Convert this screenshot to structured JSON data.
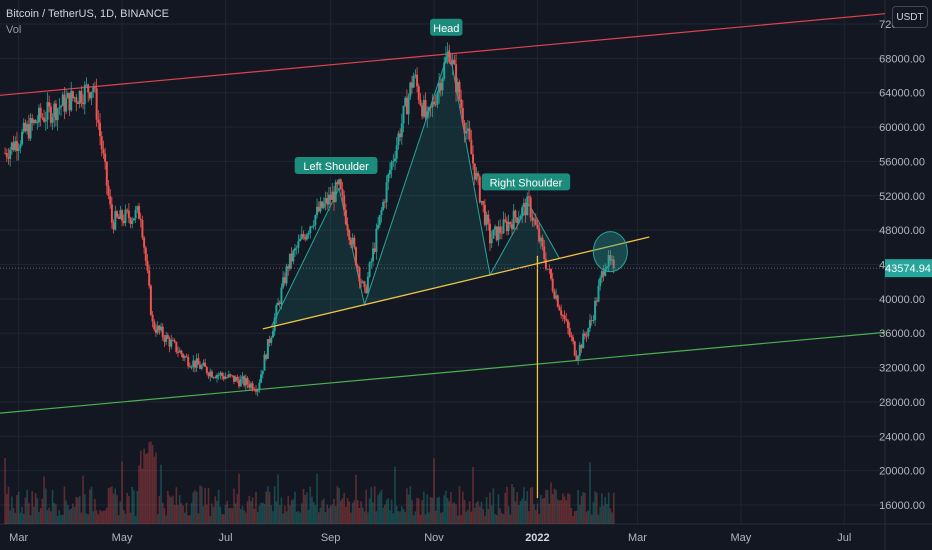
{
  "legend": {
    "symbol_line": "Bitcoin / TetherUS, 1D, BINANCE",
    "volume_label": "Vol"
  },
  "currency": "USDT",
  "chart_data": {
    "type": "candlestick",
    "title": "Bitcoin / TetherUS, 1D, BINANCE",
    "y_ticks": [
      "72000.00",
      "68000.00",
      "64000.00",
      "60000.00",
      "56000.00",
      "52000.00",
      "48000.00",
      "44000.00",
      "40000.00",
      "36000.00",
      "32000.00",
      "28000.00",
      "24000.00",
      "20000.00",
      "16000.00"
    ],
    "ylim": [
      13000,
      74000
    ],
    "x_ticks": [
      "Mar",
      "May",
      "Jul",
      "Sep",
      "Nov",
      "2022",
      "Mar",
      "May",
      "Jul"
    ],
    "last_price": "43574.94",
    "last_price_value": 43574.94,
    "price_path_key_points": [
      {
        "date": "2021-02-21",
        "close": 57000
      },
      {
        "date": "2021-03-13",
        "close": 61000
      },
      {
        "date": "2021-04-14",
        "close": 64800
      },
      {
        "date": "2021-04-25",
        "close": 49000
      },
      {
        "date": "2021-05-12",
        "close": 50000
      },
      {
        "date": "2021-05-19",
        "close": 37000
      },
      {
        "date": "2021-06-08",
        "close": 33000
      },
      {
        "date": "2021-06-22",
        "close": 31500
      },
      {
        "date": "2021-07-20",
        "close": 29800
      },
      {
        "date": "2021-08-07",
        "close": 44000
      },
      {
        "date": "2021-08-22",
        "close": 49500
      },
      {
        "date": "2021-09-06",
        "close": 52900
      },
      {
        "date": "2021-09-21",
        "close": 40500
      },
      {
        "date": "2021-10-06",
        "close": 55000
      },
      {
        "date": "2021-10-20",
        "close": 66000
      },
      {
        "date": "2021-10-28",
        "close": 60500
      },
      {
        "date": "2021-11-10",
        "close": 69000
      },
      {
        "date": "2021-11-26",
        "close": 54000
      },
      {
        "date": "2021-12-04",
        "close": 47000
      },
      {
        "date": "2021-12-16",
        "close": 49000
      },
      {
        "date": "2021-12-27",
        "close": 51000
      },
      {
        "date": "2022-01-10",
        "close": 41500
      },
      {
        "date": "2022-01-24",
        "close": 33500
      },
      {
        "date": "2022-02-02",
        "close": 37500
      },
      {
        "date": "2022-02-10",
        "close": 44500
      },
      {
        "date": "2022-02-15",
        "close": 43574.94
      }
    ],
    "pattern": {
      "left_shoulder": {
        "label": "Left Shoulder",
        "date": "2021-09-06",
        "price": 52900
      },
      "head": {
        "label": "Head",
        "date": "2021-11-10",
        "price": 69000
      },
      "right_shoulder": {
        "label": "Right Shoulder",
        "date": "2021-12-27",
        "price": 51000
      },
      "neckline": [
        {
          "date": "2021-07-23",
          "price": 36500
        },
        {
          "date": "2022-03-08",
          "price": 47200
        }
      ]
    },
    "channel_upper": [
      {
        "date": "2021-02-18",
        "price": 63700
      },
      {
        "date": "2022-07-25",
        "price": 73200
      }
    ],
    "channel_lower": [
      {
        "date": "2021-02-18",
        "price": 26700
      },
      {
        "date": "2022-07-25",
        "price": 36100
      }
    ],
    "target_line": {
      "date": "2022-01-01",
      "from": 45000,
      "to": 16800
    },
    "grid": true,
    "legend_position": "top-left"
  },
  "colors": {
    "background": "#131722",
    "up": "#26a69a",
    "down": "#ef5350",
    "grid": "#1f2433",
    "neckline": "#f0c040",
    "upper_channel": "#e0434f",
    "lower_channel": "#4caf50",
    "pattern_fill": "#26a69a",
    "label_bg": "#1c8c7c",
    "price_badge": "#26a69a"
  }
}
